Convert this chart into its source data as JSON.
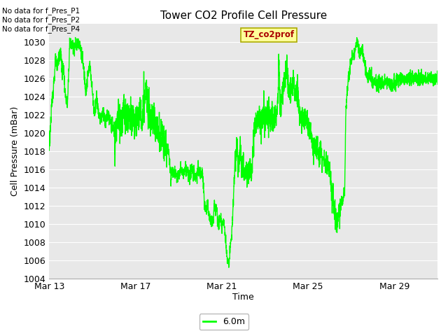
{
  "title": "Tower CO2 Profile Cell Pressure",
  "xlabel": "Time",
  "ylabel": "Cell Pressure (mBar)",
  "ylim": [
    1004,
    1032
  ],
  "xtick_labels": [
    "Mar 13",
    "Mar 17",
    "Mar 21",
    "Mar 25",
    "Mar 29"
  ],
  "line_color": "#00FF00",
  "line_width": 1.0,
  "fig_bg_color": "#FFFFFF",
  "plot_bg_color": "#E8E8E8",
  "grid_color": "#FFFFFF",
  "no_data_texts": [
    "No data for f_Pres_P1",
    "No data for f_Pres_P2",
    "No data for f_Pres_P4"
  ],
  "legend_label": "6.0m",
  "tz_label": "TZ_co2prof",
  "tz_facecolor": "#FFFF99",
  "tz_edgecolor": "#AAAA00",
  "tz_textcolor": "#AA0000",
  "waypoints": [
    [
      0.0,
      1018.5
    ],
    [
      0.15,
      1024.0
    ],
    [
      0.25,
      1026.5
    ],
    [
      0.3,
      1028.0
    ],
    [
      0.35,
      1027.0
    ],
    [
      0.45,
      1028.5
    ],
    [
      0.55,
      1028.5
    ],
    [
      0.6,
      1026.5
    ],
    [
      0.65,
      1027.5
    ],
    [
      0.75,
      1024.0
    ],
    [
      0.85,
      1023.0
    ],
    [
      0.95,
      1030.0
    ],
    [
      1.05,
      1029.5
    ],
    [
      1.15,
      1029.8
    ],
    [
      1.25,
      1029.5
    ],
    [
      1.35,
      1030.0
    ],
    [
      1.45,
      1029.5
    ],
    [
      1.6,
      1027.0
    ],
    [
      1.7,
      1024.5
    ],
    [
      1.8,
      1026.5
    ],
    [
      1.9,
      1027.5
    ],
    [
      2.0,
      1024.5
    ],
    [
      2.1,
      1022.0
    ],
    [
      2.2,
      1024.0
    ],
    [
      2.3,
      1022.0
    ],
    [
      2.4,
      1021.5
    ],
    [
      2.5,
      1022.5
    ],
    [
      2.6,
      1021.0
    ],
    [
      2.7,
      1022.0
    ],
    [
      2.8,
      1021.5
    ],
    [
      2.9,
      1021.0
    ],
    [
      3.0,
      1020.5
    ],
    [
      3.05,
      1018.0
    ],
    [
      3.1,
      1021.0
    ],
    [
      3.2,
      1022.0
    ],
    [
      3.3,
      1021.5
    ],
    [
      3.4,
      1021.0
    ],
    [
      3.45,
      1022.5
    ],
    [
      3.5,
      1022.0
    ],
    [
      3.55,
      1021.0
    ],
    [
      3.6,
      1022.0
    ],
    [
      3.65,
      1021.0
    ],
    [
      3.7,
      1022.0
    ],
    [
      3.75,
      1021.5
    ],
    [
      3.8,
      1022.5
    ],
    [
      3.85,
      1021.0
    ],
    [
      3.9,
      1022.0
    ],
    [
      3.95,
      1021.5
    ],
    [
      4.0,
      1021.0
    ],
    [
      4.1,
      1021.5
    ],
    [
      4.2,
      1022.5
    ],
    [
      4.3,
      1021.0
    ],
    [
      4.4,
      1023.5
    ],
    [
      4.5,
      1024.5
    ],
    [
      4.6,
      1023.0
    ],
    [
      4.7,
      1021.5
    ],
    [
      4.8,
      1022.0
    ],
    [
      4.9,
      1021.0
    ],
    [
      5.0,
      1020.5
    ],
    [
      5.1,
      1019.5
    ],
    [
      5.2,
      1020.0
    ],
    [
      5.3,
      1019.0
    ],
    [
      5.4,
      1018.5
    ],
    [
      5.5,
      1018.5
    ],
    [
      5.6,
      1016.5
    ],
    [
      5.65,
      1015.2
    ],
    [
      5.7,
      1016.0
    ],
    [
      5.8,
      1015.8
    ],
    [
      5.9,
      1015.2
    ],
    [
      6.0,
      1015.5
    ],
    [
      6.1,
      1016.0
    ],
    [
      6.2,
      1015.5
    ],
    [
      6.3,
      1016.2
    ],
    [
      6.4,
      1015.8
    ],
    [
      6.5,
      1015.2
    ],
    [
      6.6,
      1016.0
    ],
    [
      6.7,
      1015.5
    ],
    [
      6.8,
      1015.0
    ],
    [
      6.9,
      1016.0
    ],
    [
      7.0,
      1015.5
    ],
    [
      7.1,
      1015.8
    ],
    [
      7.2,
      1012.0
    ],
    [
      7.3,
      1011.5
    ],
    [
      7.35,
      1012.5
    ],
    [
      7.4,
      1011.0
    ],
    [
      7.45,
      1010.5
    ],
    [
      7.5,
      1010.2
    ],
    [
      7.55,
      1010.5
    ],
    [
      7.6,
      1010.0
    ],
    [
      7.65,
      1012.2
    ],
    [
      7.7,
      1011.5
    ],
    [
      7.75,
      1012.0
    ],
    [
      7.8,
      1010.5
    ],
    [
      7.85,
      1010.0
    ],
    [
      7.9,
      1010.2
    ],
    [
      7.95,
      1010.5
    ],
    [
      8.0,
      1009.5
    ],
    [
      8.05,
      1010.0
    ],
    [
      8.1,
      1010.5
    ],
    [
      8.15,
      1009.0
    ],
    [
      8.2,
      1007.5
    ],
    [
      8.25,
      1006.0
    ],
    [
      8.3,
      1005.8
    ],
    [
      8.35,
      1006.0
    ],
    [
      8.4,
      1007.5
    ],
    [
      8.45,
      1008.5
    ],
    [
      8.5,
      1010.5
    ],
    [
      8.6,
      1016.0
    ],
    [
      8.7,
      1018.5
    ],
    [
      8.75,
      1016.5
    ],
    [
      8.8,
      1016.0
    ],
    [
      8.85,
      1018.5
    ],
    [
      8.9,
      1016.5
    ],
    [
      8.95,
      1016.0
    ],
    [
      9.0,
      1016.5
    ],
    [
      9.05,
      1015.8
    ],
    [
      9.1,
      1016.0
    ],
    [
      9.15,
      1015.5
    ],
    [
      9.2,
      1016.0
    ],
    [
      9.3,
      1015.8
    ],
    [
      9.4,
      1016.2
    ],
    [
      9.5,
      1020.5
    ],
    [
      9.6,
      1021.0
    ],
    [
      9.7,
      1021.5
    ],
    [
      9.75,
      1022.0
    ],
    [
      9.8,
      1021.5
    ],
    [
      9.85,
      1022.0
    ],
    [
      9.9,
      1021.0
    ],
    [
      9.95,
      1022.5
    ],
    [
      10.0,
      1021.5
    ],
    [
      10.1,
      1022.0
    ],
    [
      10.2,
      1022.5
    ],
    [
      10.25,
      1021.5
    ],
    [
      10.3,
      1022.0
    ],
    [
      10.4,
      1021.5
    ],
    [
      10.5,
      1022.0
    ],
    [
      10.6,
      1023.5
    ],
    [
      10.65,
      1028.5
    ],
    [
      10.7,
      1023.0
    ],
    [
      10.75,
      1022.5
    ],
    [
      10.8,
      1024.5
    ],
    [
      10.9,
      1025.5
    ],
    [
      11.0,
      1027.5
    ],
    [
      11.1,
      1024.5
    ],
    [
      11.15,
      1025.0
    ],
    [
      11.2,
      1024.5
    ],
    [
      11.3,
      1025.5
    ],
    [
      11.4,
      1024.0
    ],
    [
      11.5,
      1025.0
    ],
    [
      11.6,
      1022.0
    ],
    [
      11.65,
      1021.5
    ],
    [
      11.7,
      1022.0
    ],
    [
      11.8,
      1021.5
    ],
    [
      11.9,
      1021.5
    ],
    [
      12.0,
      1021.0
    ],
    [
      12.1,
      1020.0
    ],
    [
      12.2,
      1019.0
    ],
    [
      12.3,
      1018.5
    ],
    [
      12.4,
      1018.0
    ],
    [
      12.5,
      1017.5
    ],
    [
      12.6,
      1018.0
    ],
    [
      12.65,
      1016.5
    ],
    [
      12.7,
      1017.0
    ],
    [
      12.8,
      1016.5
    ],
    [
      12.9,
      1016.5
    ],
    [
      13.0,
      1016.0
    ],
    [
      13.1,
      1013.5
    ],
    [
      13.2,
      1012.0
    ],
    [
      13.3,
      1010.5
    ],
    [
      13.4,
      1010.5
    ],
    [
      13.5,
      1012.0
    ],
    [
      13.6,
      1012.5
    ],
    [
      13.7,
      1013.5
    ],
    [
      13.75,
      1022.5
    ],
    [
      13.8,
      1024.0
    ],
    [
      13.85,
      1025.5
    ],
    [
      13.9,
      1026.5
    ],
    [
      14.0,
      1028.0
    ],
    [
      14.1,
      1028.5
    ],
    [
      14.15,
      1029.0
    ],
    [
      14.2,
      1029.5
    ],
    [
      14.3,
      1030.0
    ],
    [
      14.4,
      1028.5
    ],
    [
      14.5,
      1029.5
    ],
    [
      14.6,
      1028.0
    ],
    [
      14.7,
      1026.5
    ],
    [
      14.8,
      1026.0
    ],
    [
      14.9,
      1026.5
    ],
    [
      15.0,
      1025.5
    ],
    [
      15.5,
      1025.5
    ],
    [
      16.0,
      1025.5
    ],
    [
      16.5,
      1026.0
    ],
    [
      17.0,
      1026.0
    ],
    [
      17.5,
      1026.0
    ],
    [
      18.0,
      1026.0
    ]
  ]
}
